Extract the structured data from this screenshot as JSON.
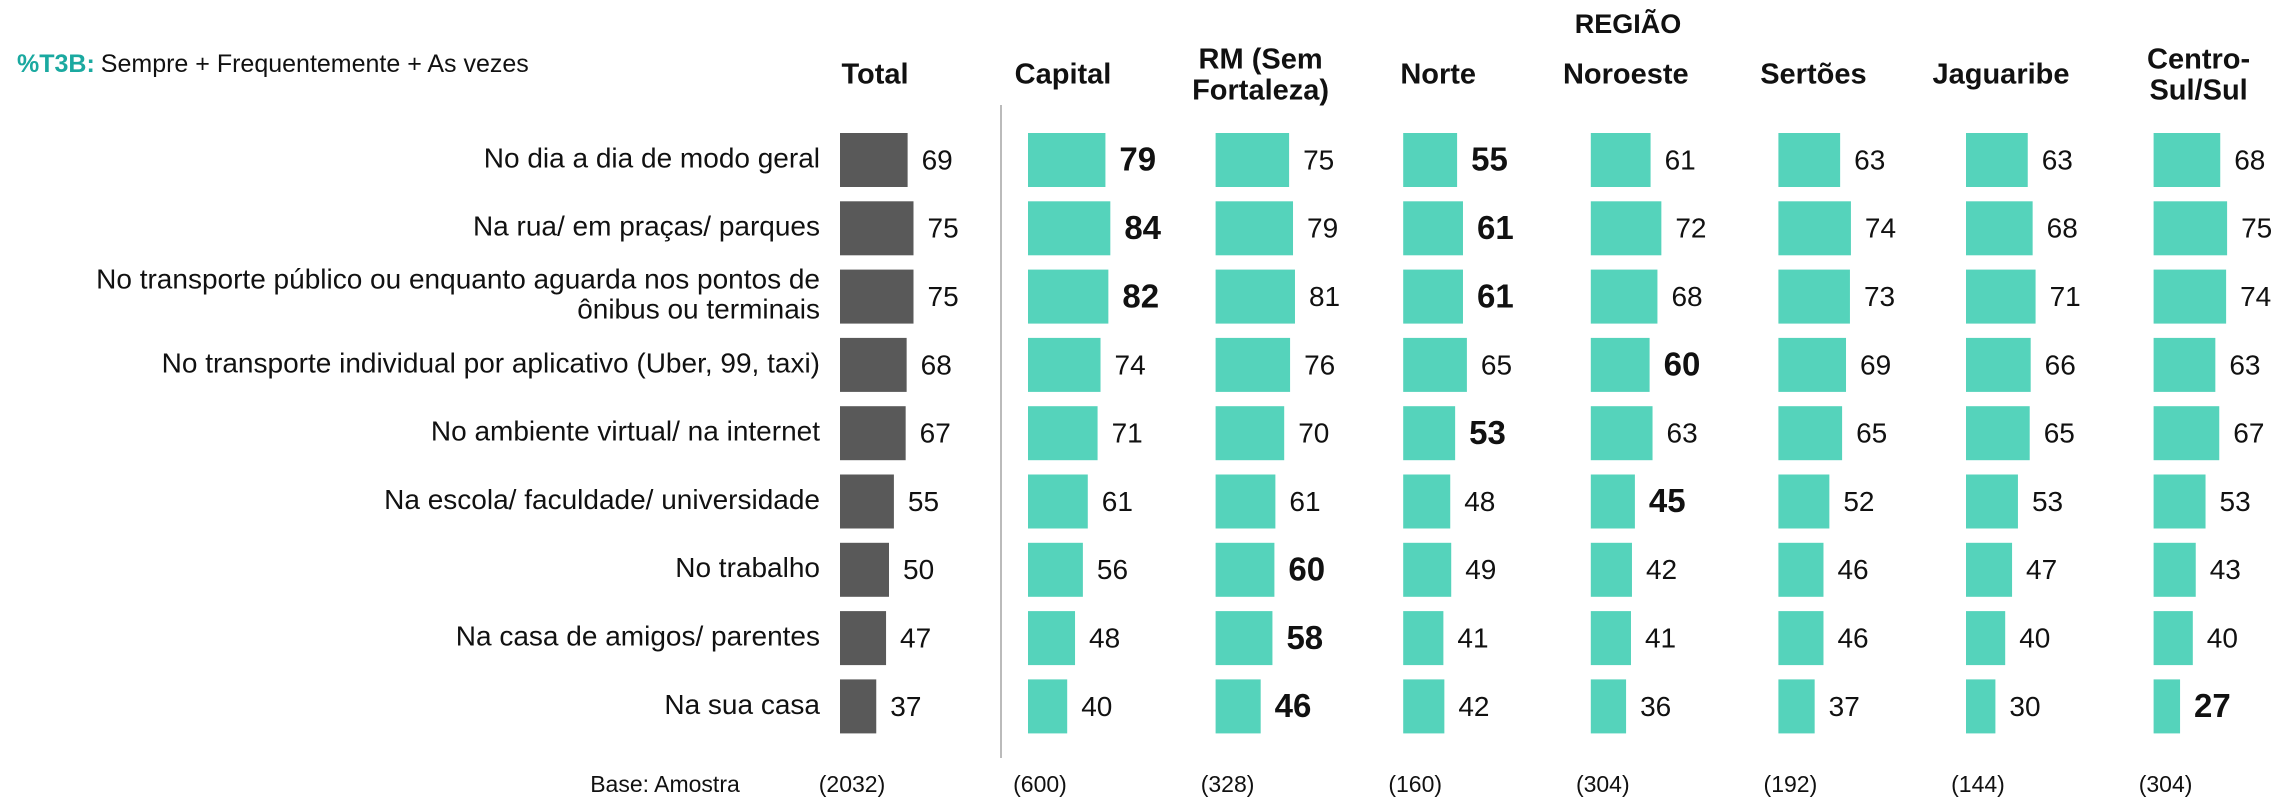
{
  "chart_data": {
    "type": "bar",
    "metric": "%T3B:",
    "metric_color": "#1aa9a0",
    "metric_desc": "Sempre + Frequentemente + As vezes",
    "group_title": "REGIÃO",
    "group_title_color": "#1a8a8a",
    "base_label": "Base: Amostra",
    "categories": [
      "No dia a dia de modo geral",
      "Na rua/ em praças/ parques",
      "No transporte público ou enquanto aguarda nos pontos de\nônibus ou terminais",
      "No transporte individual por aplicativo (Uber, 99, taxi)",
      "No ambiente virtual/ na internet",
      "Na escola/ faculdade/ universidade",
      "No trabalho",
      "Na casa de amigos/ parentes",
      "Na sua casa"
    ],
    "series": [
      {
        "name": "Total",
        "base": "(2032)",
        "color": "#595959",
        "values": [
          69,
          75,
          75,
          68,
          67,
          55,
          50,
          47,
          37
        ],
        "label_colors": [
          null,
          null,
          null,
          null,
          null,
          null,
          null,
          null,
          null
        ]
      },
      {
        "name": "Capital",
        "base": "(600)",
        "color": "#55d3bb",
        "values": [
          79,
          84,
          82,
          74,
          71,
          61,
          56,
          48,
          40
        ],
        "label_colors": [
          "#1a6fba",
          "#1a6fba",
          "#1a6fba",
          null,
          null,
          null,
          null,
          null,
          null
        ]
      },
      {
        "name": "RM (Sem\nFortaleza)",
        "base": "(328)",
        "color": "#55d3bb",
        "values": [
          75,
          79,
          81,
          76,
          70,
          61,
          60,
          58,
          46
        ],
        "label_colors": [
          null,
          null,
          null,
          null,
          null,
          null,
          "#1a6fba",
          "#1a6fba",
          "#1a6fba"
        ]
      },
      {
        "name": "Norte",
        "base": "(160)",
        "color": "#55d3bb",
        "values": [
          55,
          61,
          61,
          65,
          53,
          48,
          49,
          41,
          42
        ],
        "label_colors": [
          "#e0115f",
          "#e0115f",
          "#e0115f",
          null,
          "#e0115f",
          null,
          null,
          null,
          null
        ]
      },
      {
        "name": "Noroeste",
        "base": "(304)",
        "color": "#55d3bb",
        "values": [
          61,
          72,
          68,
          60,
          63,
          45,
          42,
          41,
          36
        ],
        "label_colors": [
          null,
          null,
          null,
          "#e0115f",
          null,
          "#e0115f",
          null,
          null,
          null
        ]
      },
      {
        "name": "Sertões",
        "base": "(192)",
        "color": "#55d3bb",
        "values": [
          63,
          74,
          73,
          69,
          65,
          52,
          46,
          46,
          37
        ],
        "label_colors": [
          null,
          null,
          null,
          null,
          null,
          null,
          null,
          null,
          null
        ]
      },
      {
        "name": "Jaguaribe",
        "base": "(144)",
        "color": "#55d3bb",
        "values": [
          63,
          68,
          71,
          66,
          65,
          53,
          47,
          40,
          30
        ],
        "label_colors": [
          null,
          null,
          null,
          null,
          null,
          null,
          null,
          null,
          null
        ]
      },
      {
        "name": "Centro-\nSul/Sul",
        "base": "(304)",
        "color": "#55d3bb",
        "values": [
          68,
          75,
          74,
          63,
          67,
          53,
          43,
          40,
          27
        ],
        "label_colors": [
          null,
          null,
          null,
          null,
          null,
          null,
          null,
          null,
          "#e0115f"
        ]
      }
    ]
  }
}
